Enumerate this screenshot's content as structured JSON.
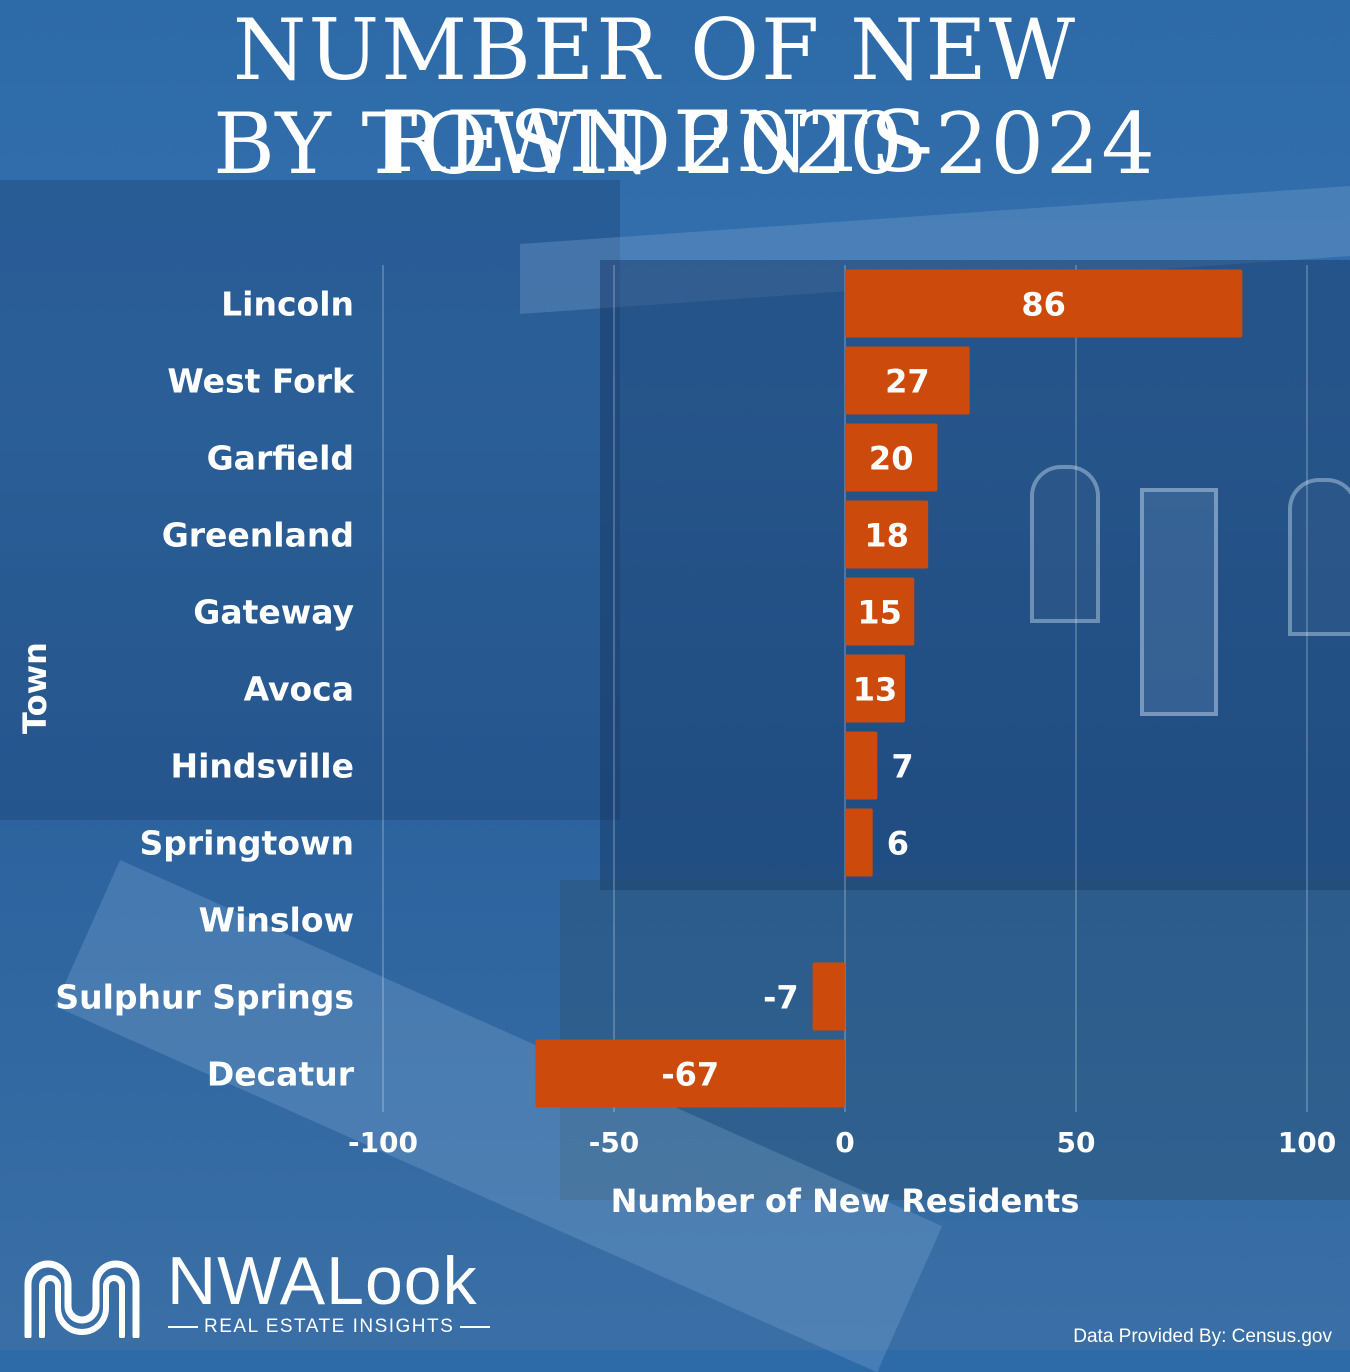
{
  "title": {
    "line1": "NUMBER OF NEW RESIDENTS",
    "line2": "BY TOWN 2020-2024"
  },
  "colors": {
    "bar": "#cc4a0b",
    "background": "#2f6aa6",
    "text": "#ffffff"
  },
  "chart_data": {
    "type": "bar",
    "orientation": "horizontal",
    "title": "NUMBER OF NEW RESIDENTS BY TOWN 2020-2024",
    "xlabel": "Number of New Residents",
    "ylabel": "Town",
    "categories": [
      "Lincoln",
      "West Fork",
      "Garfield",
      "Greenland",
      "Gateway",
      "Avoca",
      "Hindsville",
      "Springtown",
      "Winslow",
      "Sulphur Springs",
      "Decatur"
    ],
    "values": [
      86,
      27,
      20,
      18,
      15,
      13,
      7,
      6,
      0,
      -7,
      -67
    ],
    "data_labels": [
      "86",
      "27",
      "20",
      "18",
      "15",
      "13",
      "7",
      "6",
      "",
      "-7",
      "-67"
    ],
    "xlim": [
      -100,
      100
    ],
    "xticks": [
      "-100",
      "-50",
      "0",
      "50",
      "100"
    ],
    "grid": true
  },
  "logo": {
    "brand": "NWALook",
    "tagline": "REAL ESTATE INSIGHTS"
  },
  "source": "Data Provided By: Census.gov"
}
